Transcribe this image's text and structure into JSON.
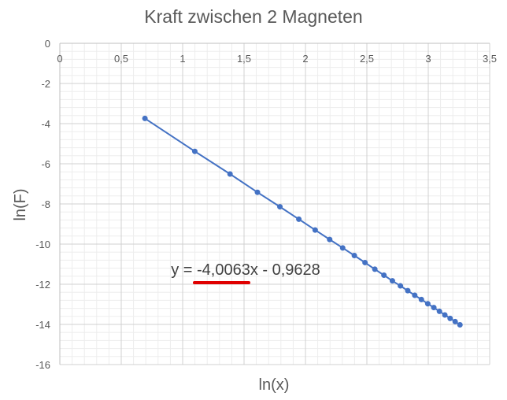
{
  "chart_data": {
    "type": "scatter",
    "title": "Kraft zwischen 2 Magneten",
    "xlabel": "ln(x)",
    "ylabel": "ln(F)",
    "xlim": [
      0,
      3.5
    ],
    "ylim": [
      -16,
      0
    ],
    "x_ticks": [
      "0",
      "0,5",
      "1",
      "1,5",
      "2",
      "2,5",
      "3",
      "3,5"
    ],
    "y_ticks": [
      "0",
      "-2",
      "-4",
      "-6",
      "-8",
      "-10",
      "-12",
      "-14",
      "-16"
    ],
    "grid": true,
    "series": [
      {
        "color": "#4472C4",
        "x": [
          0.693,
          1.099,
          1.386,
          1.609,
          1.792,
          1.946,
          2.079,
          2.197,
          2.303,
          2.398,
          2.485,
          2.565,
          2.639,
          2.708,
          2.773,
          2.833,
          2.89,
          2.944,
          2.996,
          3.045,
          3.091,
          3.135,
          3.178,
          3.219,
          3.258
        ],
        "y": [
          -3.74,
          -5.38,
          -6.51,
          -7.42,
          -8.14,
          -8.76,
          -9.3,
          -9.77,
          -10.19,
          -10.57,
          -10.92,
          -11.25,
          -11.55,
          -11.83,
          -12.08,
          -12.32,
          -12.55,
          -12.76,
          -12.97,
          -13.16,
          -13.35,
          -13.53,
          -13.7,
          -13.86,
          -14.02
        ]
      }
    ],
    "annotations": [
      {
        "text": "y = -4,0063x - 0,9628",
        "underline_color": "#E00000"
      }
    ]
  }
}
